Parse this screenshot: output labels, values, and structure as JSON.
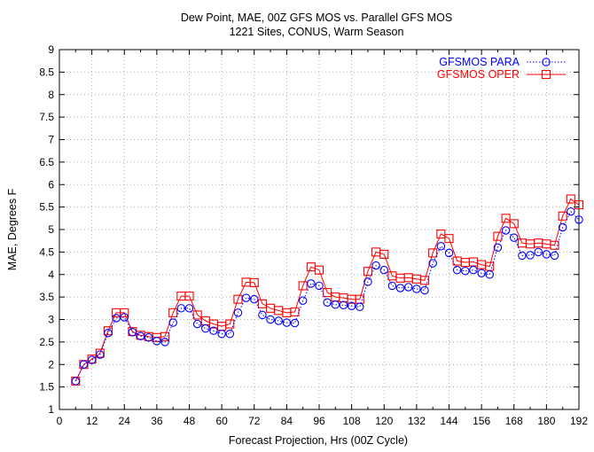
{
  "chart_data": {
    "type": "line",
    "title": "Dew Point, MAE, 00Z GFS MOS vs. Parallel GFS MOS",
    "subtitle": "1221 Sites, CONUS, Warm Season",
    "xlabel": "Forecast Projection, Hrs (00Z Cycle)",
    "ylabel": "MAE, Degrees F",
    "xlim": [
      0,
      192
    ],
    "ylim": [
      1,
      9
    ],
    "xticks": [
      0,
      12,
      24,
      36,
      48,
      60,
      72,
      84,
      96,
      108,
      120,
      132,
      144,
      156,
      168,
      180,
      192
    ],
    "yticks": [
      1,
      1.5,
      2,
      2.5,
      3,
      3.5,
      4,
      4.5,
      5,
      5.5,
      6,
      6.5,
      7,
      7.5,
      8,
      8.5,
      9
    ],
    "ytick_labels": [
      "1",
      "1.5",
      "2",
      "2.5",
      "3",
      "3.5",
      "4",
      "4.5",
      "5",
      "5.5",
      "6",
      "6.5",
      "7",
      "7.5",
      "8",
      "8.5",
      "9"
    ],
    "grid": true,
    "legend_position": "top-right",
    "x": [
      6,
      9,
      12,
      15,
      18,
      21,
      24,
      27,
      30,
      33,
      36,
      39,
      42,
      45,
      48,
      51,
      54,
      57,
      60,
      63,
      66,
      69,
      72,
      75,
      78,
      81,
      84,
      87,
      90,
      93,
      96,
      99,
      102,
      105,
      108,
      111,
      114,
      117,
      120,
      123,
      126,
      129,
      132,
      135,
      138,
      141,
      144,
      147,
      150,
      153,
      156,
      159,
      162,
      165,
      168,
      171,
      174,
      177,
      180,
      183,
      186,
      189,
      192
    ],
    "series": [
      {
        "name": "GFSMOS PARA",
        "color": "#0000ff",
        "marker": "circle",
        "line_style": "dotted",
        "values": [
          1.63,
          2.0,
          2.1,
          2.22,
          2.7,
          3.03,
          3.05,
          2.72,
          2.63,
          2.6,
          2.52,
          2.5,
          2.93,
          3.25,
          3.25,
          2.9,
          2.8,
          2.75,
          2.68,
          2.68,
          3.15,
          3.48,
          3.45,
          3.1,
          3.0,
          2.97,
          2.93,
          2.92,
          3.42,
          3.8,
          3.75,
          3.38,
          3.33,
          3.32,
          3.3,
          3.28,
          3.84,
          4.2,
          4.1,
          3.75,
          3.7,
          3.72,
          3.68,
          3.65,
          4.25,
          4.63,
          4.48,
          4.1,
          4.08,
          4.1,
          4.03,
          4.0,
          4.6,
          4.98,
          4.82,
          4.42,
          4.43,
          4.5,
          4.45,
          4.42,
          5.05,
          5.4,
          5.22
        ]
      },
      {
        "name": "GFSMOS OPER",
        "color": "#ff0000",
        "marker": "square",
        "line_style": "solid",
        "values": [
          1.63,
          2.0,
          2.12,
          2.25,
          2.75,
          3.15,
          3.15,
          2.73,
          2.65,
          2.62,
          2.6,
          2.62,
          3.15,
          3.52,
          3.52,
          3.1,
          2.97,
          2.9,
          2.85,
          2.9,
          3.45,
          3.83,
          3.82,
          3.35,
          3.25,
          3.2,
          3.15,
          3.17,
          3.75,
          4.17,
          4.1,
          3.6,
          3.5,
          3.48,
          3.45,
          3.45,
          4.07,
          4.5,
          4.45,
          3.97,
          3.92,
          3.93,
          3.9,
          3.87,
          4.48,
          4.9,
          4.8,
          4.3,
          4.27,
          4.28,
          4.22,
          4.18,
          4.85,
          5.25,
          5.13,
          4.7,
          4.68,
          4.7,
          4.68,
          4.65,
          5.3,
          5.68,
          5.55
        ]
      }
    ]
  }
}
